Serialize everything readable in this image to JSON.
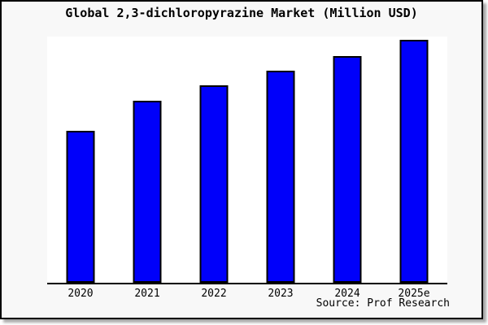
{
  "title": "Global 2,3-dichloropyrazine Market (Million USD)",
  "source": "Source: Prof Research",
  "colors": {
    "background": "#f8f8f8",
    "plot_background": "#ffffff",
    "bar_fill": "#0000fa",
    "bar_border": "#000000",
    "frame_border": "#000000",
    "text": "#000000"
  },
  "chart_data": {
    "type": "bar",
    "title": "Global 2,3-dichloropyrazine Market (Million USD)",
    "categories": [
      "2020",
      "2021",
      "2022",
      "2023",
      "2024",
      "2025e"
    ],
    "values": [
      62.5,
      75.0,
      81.5,
      87.5,
      93.5,
      100.0
    ],
    "value_scale": "relative to tallest bar = 100 (no y-axis labels shown)",
    "xlabel": "",
    "ylabel": "",
    "ylim": [
      0,
      101.5
    ],
    "grid": false,
    "legend": null,
    "y_axis_visible": false,
    "x_axis_visible": true
  }
}
